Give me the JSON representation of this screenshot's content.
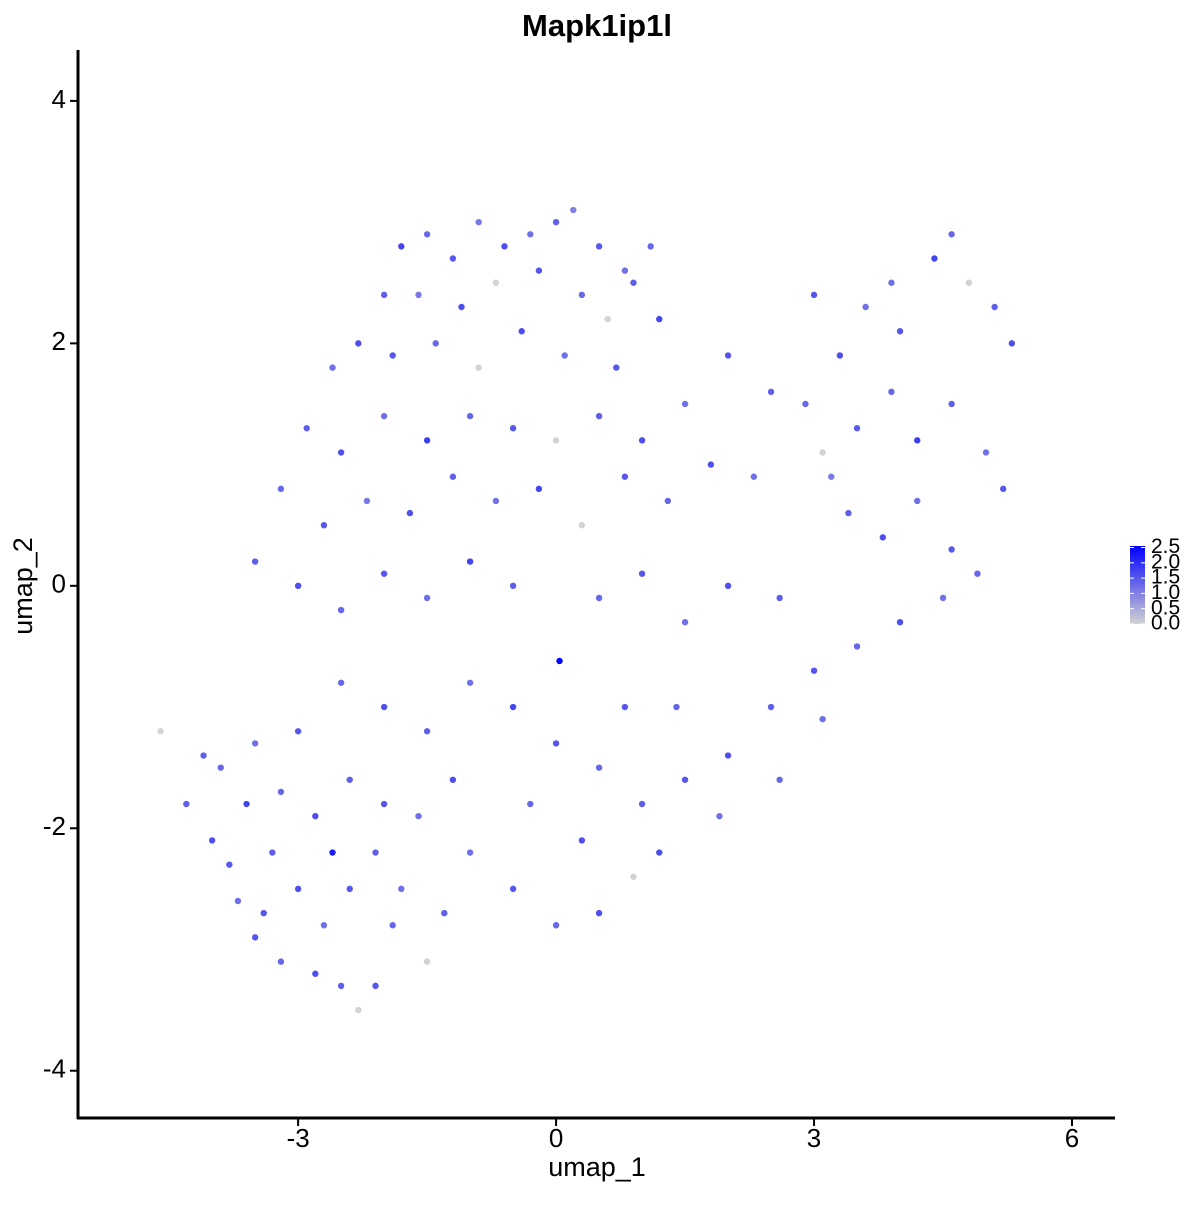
{
  "chart_data": {
    "type": "scatter",
    "title": "Mapk1ip1l",
    "x_label": "umap_1",
    "y_label": "umap_2",
    "xlim": [
      -5.56,
      6.5
    ],
    "ylim": [
      -4.39,
      4.42
    ],
    "xticks": [
      -3,
      0,
      3,
      6
    ],
    "yticks": [
      -4,
      -2,
      0,
      2,
      4
    ],
    "color_low": "#d3d3d3",
    "color_high": "#0000ff",
    "clim": [
      0,
      2.55
    ],
    "cticks": [
      {
        "value": 0,
        "label": "0.0"
      },
      {
        "value": 0.5,
        "label": "0.5"
      },
      {
        "value": 1,
        "label": "1.0"
      },
      {
        "value": 1.5,
        "label": "1.5"
      },
      {
        "value": 2,
        "label": "2.0"
      },
      {
        "value": 2.5,
        "label": "2.5"
      }
    ],
    "x": [
      -1.5,
      -1.2,
      -0.9,
      -0.6,
      -0.3,
      0,
      0.2,
      0.5,
      0.8,
      1.1,
      -1.8,
      -2.0,
      -1.6,
      -1.1,
      -0.7,
      -0.2,
      0.3,
      0.6,
      0.9,
      -2.3,
      -2.6,
      -1.9,
      -1.4,
      -0.9,
      -0.4,
      0.1,
      0.7,
      1.2,
      -2.9,
      -2.5,
      -2.0,
      -1.5,
      -1.0,
      -0.5,
      0,
      0.5,
      1.0,
      1.5,
      2.0,
      -3.2,
      -2.7,
      -2.2,
      -1.7,
      -1.2,
      -0.7,
      -0.2,
      0.3,
      0.8,
      1.3,
      1.8,
      2.3,
      -3.5,
      -3.0,
      -2.5,
      -2.0,
      -1.5,
      -1.0,
      -0.5,
      0.04,
      0.5,
      1.0,
      1.5,
      2.0,
      2.6,
      2.9,
      3.3,
      3.6,
      4.0,
      4.4,
      4.6,
      4.8,
      5.1,
      5.3,
      3.1,
      3.5,
      3.9,
      4.2,
      4.6,
      5.0,
      5.2,
      3.4,
      3.8,
      4.2,
      4.6,
      4.9,
      3.2,
      2.5,
      3.0,
      3.9,
      3.0,
      3.5,
      4.0,
      4.5,
      2.5,
      3.1,
      2.0,
      2.6,
      1.5,
      1.9,
      1.2,
      1.0,
      0.5,
      0,
      -0.5,
      -1.0,
      -1.5,
      -2.0,
      -2.5,
      -3.0,
      -3.5,
      0.9,
      0.5,
      0,
      -0.5,
      -1.0,
      -1.3,
      0.3,
      -0.3,
      0.8,
      1.4,
      -4.6,
      -4.3,
      -4.0,
      -3.7,
      -3.5,
      -3.2,
      -2.8,
      -2.5,
      -2.3,
      -2.1,
      -1.9,
      -1.5,
      -3.9,
      -3.6,
      -3.3,
      -3.0,
      -2.7,
      -2.4,
      -2.1,
      -1.8,
      -3.8,
      -3.2,
      -2.8,
      -2.4,
      -2.0,
      -1.6,
      -1.2,
      -4.1,
      -2.6,
      -3.4
    ],
    "y": [
      2.9,
      2.7,
      3.0,
      2.8,
      2.9,
      3.0,
      3.1,
      2.8,
      2.6,
      2.8,
      2.8,
      2.4,
      2.4,
      2.3,
      2.5,
      2.6,
      2.4,
      2.2,
      2.5,
      2.0,
      1.8,
      1.9,
      2.0,
      1.8,
      2.1,
      1.9,
      1.8,
      2.2,
      1.3,
      1.1,
      1.4,
      1.2,
      1.4,
      1.3,
      1.2,
      1.4,
      1.2,
      1.5,
      1.9,
      0.8,
      0.5,
      0.7,
      0.6,
      0.9,
      0.7,
      0.8,
      0.5,
      0.9,
      0.7,
      1.0,
      0.9,
      0.2,
      0,
      -0.2,
      0.1,
      -0.1,
      0.2,
      0,
      -0.62,
      -0.1,
      0.1,
      -0.3,
      0,
      -0.1,
      1.5,
      1.9,
      2.3,
      2.1,
      2.7,
      2.9,
      2.5,
      2.3,
      2.0,
      1.1,
      1.3,
      1.6,
      1.2,
      1.5,
      1.1,
      0.8,
      0.6,
      0.4,
      0.7,
      0.3,
      0.1,
      0.9,
      1.6,
      2.4,
      2.5,
      -0.7,
      -0.5,
      -0.3,
      -0.1,
      -1.0,
      -1.1,
      -1.4,
      -1.6,
      -1.6,
      -1.9,
      -2.2,
      -1.8,
      -1.5,
      -1.3,
      -1.0,
      -0.8,
      -1.2,
      -1.0,
      -0.8,
      -1.2,
      -1.3,
      -2.4,
      -2.7,
      -2.8,
      -2.5,
      -2.2,
      -2.7,
      -2.1,
      -1.8,
      -1.0,
      -1.0,
      -1.2,
      -1.8,
      -2.1,
      -2.6,
      -2.9,
      -3.1,
      -3.2,
      -3.3,
      -3.5,
      -3.3,
      -2.8,
      -3.1,
      -1.5,
      -1.8,
      -2.2,
      -2.5,
      -2.8,
      -2.5,
      -2.2,
      -2.5,
      -2.3,
      -1.7,
      -1.9,
      -1.6,
      -1.8,
      -1.9,
      -1.6,
      -1.4,
      -2.2,
      -2.7
    ],
    "values": [
      1.3,
      1.5,
      1.1,
      1.6,
      1.2,
      1.4,
      1.0,
      1.5,
      1.2,
      1.3,
      1.7,
      1.4,
      1.1,
      1.6,
      0,
      1.5,
      1.3,
      0,
      1.4,
      1.6,
      1.2,
      1.5,
      1.3,
      0,
      1.6,
      1.2,
      1.5,
      1.7,
      1.4,
      1.6,
      1.2,
      1.8,
      1.3,
      1.5,
      0,
      1.4,
      1.6,
      1.2,
      1.5,
      1.3,
      1.5,
      1.1,
      1.6,
      1.4,
      1.2,
      1.7,
      0,
      1.5,
      1.3,
      1.6,
      1.2,
      1.4,
      1.6,
      1.3,
      1.5,
      1.2,
      1.7,
      1.4,
      2.6,
      1.3,
      1.5,
      1.2,
      1.6,
      1.4,
      1.3,
      1.6,
      1.2,
      1.5,
      1.7,
      1.3,
      0,
      1.4,
      1.6,
      0,
      1.5,
      1.3,
      1.8,
      1.4,
      1.2,
      1.5,
      1.4,
      1.6,
      1.2,
      1.5,
      1.3,
      1.1,
      1.4,
      1.5,
      1.2,
      1.5,
      1.3,
      1.6,
      1.2,
      1.4,
      1.2,
      1.6,
      1.3,
      1.5,
      1.2,
      1.6,
      1.4,
      1.3,
      1.5,
      1.7,
      1.2,
      1.4,
      1.6,
      1.3,
      1.5,
      1.2,
      0,
      1.6,
      1.3,
      1.5,
      1.2,
      1.4,
      1.6,
      1.3,
      1.5,
      1.3,
      0,
      1.4,
      1.6,
      1.2,
      1.5,
      1.3,
      1.6,
      1.4,
      0,
      1.5,
      1.3,
      0,
      1.3,
      1.7,
      1.4,
      1.6,
      1.2,
      1.5,
      1.4,
      1.2,
      1.5,
      1.3,
      1.6,
      1.4,
      1.5,
      1.2,
      1.6,
      1.4,
      2.2,
      1.5
    ]
  }
}
